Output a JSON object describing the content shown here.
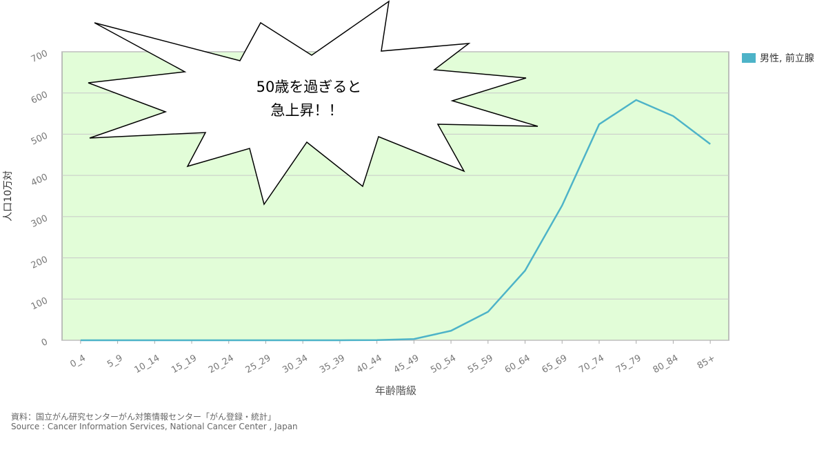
{
  "chart_data": {
    "type": "line",
    "title_annotation": [
      "50歳を過ぎると",
      "急上昇！！"
    ],
    "y_label": "人口10万対",
    "x_label": "年齢階級",
    "categories": [
      "0_4",
      "5_9",
      "10_14",
      "15_19",
      "20_24",
      "25_29",
      "30_34",
      "35_39",
      "40_44",
      "45_49",
      "50_54",
      "55_59",
      "60_64",
      "65_69",
      "70_74",
      "75_79",
      "80_84",
      "85+"
    ],
    "series": [
      {
        "name": "男性, 前立腺",
        "color": "#4db3c8",
        "values": [
          0,
          0,
          0,
          0,
          0,
          0,
          0,
          0,
          0.5,
          3,
          23,
          69,
          169,
          327,
          524,
          583,
          544,
          476
        ]
      }
    ],
    "ylim": [
      0,
      700
    ],
    "yticks": [
      0,
      100,
      200,
      300,
      400,
      500,
      600,
      700
    ],
    "grid": true,
    "legend": "right",
    "source": [
      "資料：国立がん研究センターがん対策情報センター「がん登録・統計」",
      "Source : Cancer Information Services, National Cancer Center , Japan"
    ]
  }
}
